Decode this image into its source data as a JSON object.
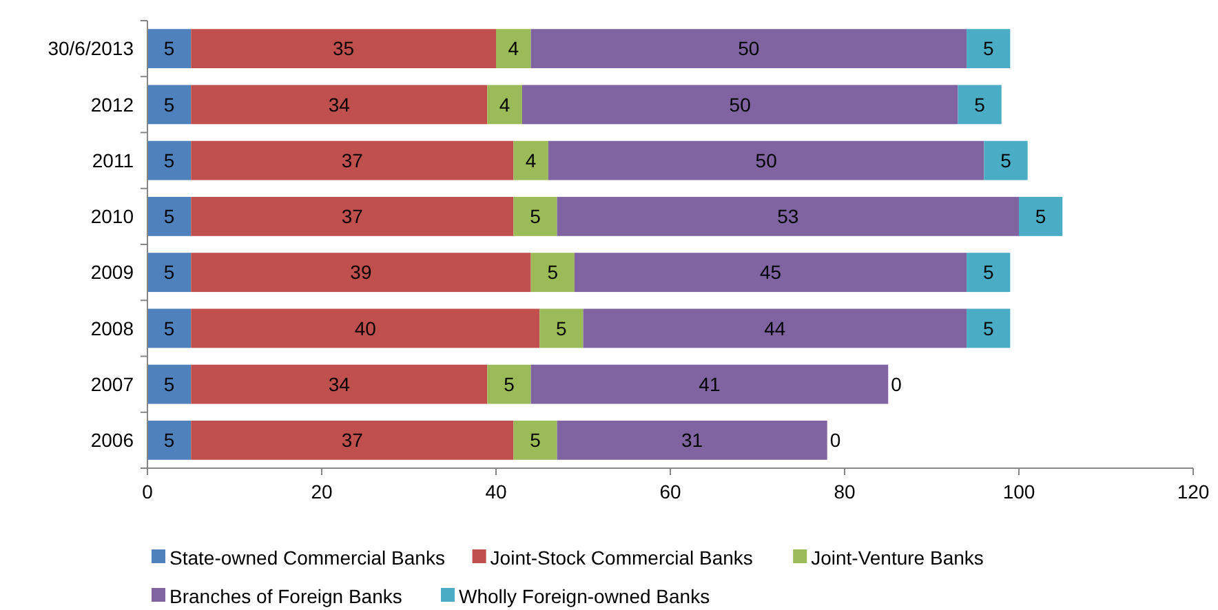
{
  "chart_data": {
    "type": "bar",
    "orientation": "horizontal",
    "stacked": true,
    "data_labels": true,
    "legend": "bottom",
    "grid": false,
    "categories": [
      "30/6/2013",
      "2012",
      "2011",
      "2010",
      "2009",
      "2008",
      "2007",
      "2006"
    ],
    "series": [
      {
        "name": "State-owned Commercial Banks",
        "color": "#4f81bd",
        "values": [
          5,
          5,
          5,
          5,
          5,
          5,
          5,
          5
        ]
      },
      {
        "name": "Joint-Stock Commercial Banks",
        "color": "#c0504d",
        "values": [
          35,
          34,
          37,
          37,
          39,
          40,
          34,
          37
        ]
      },
      {
        "name": "Joint-Venture Banks",
        "color": "#9bbb59",
        "values": [
          4,
          4,
          4,
          5,
          5,
          5,
          5,
          5
        ]
      },
      {
        "name": "Branches of Foreign Banks",
        "color": "#8064a2",
        "values": [
          50,
          50,
          50,
          53,
          45,
          44,
          41,
          31
        ]
      },
      {
        "name": "Wholly Foreign-owned Banks",
        "color": "#4bacc6",
        "values": [
          5,
          5,
          5,
          5,
          5,
          5,
          0,
          0
        ]
      }
    ],
    "xlim": [
      0,
      120
    ],
    "xticks": [
      0,
      20,
      40,
      60,
      80,
      100,
      120
    ]
  }
}
